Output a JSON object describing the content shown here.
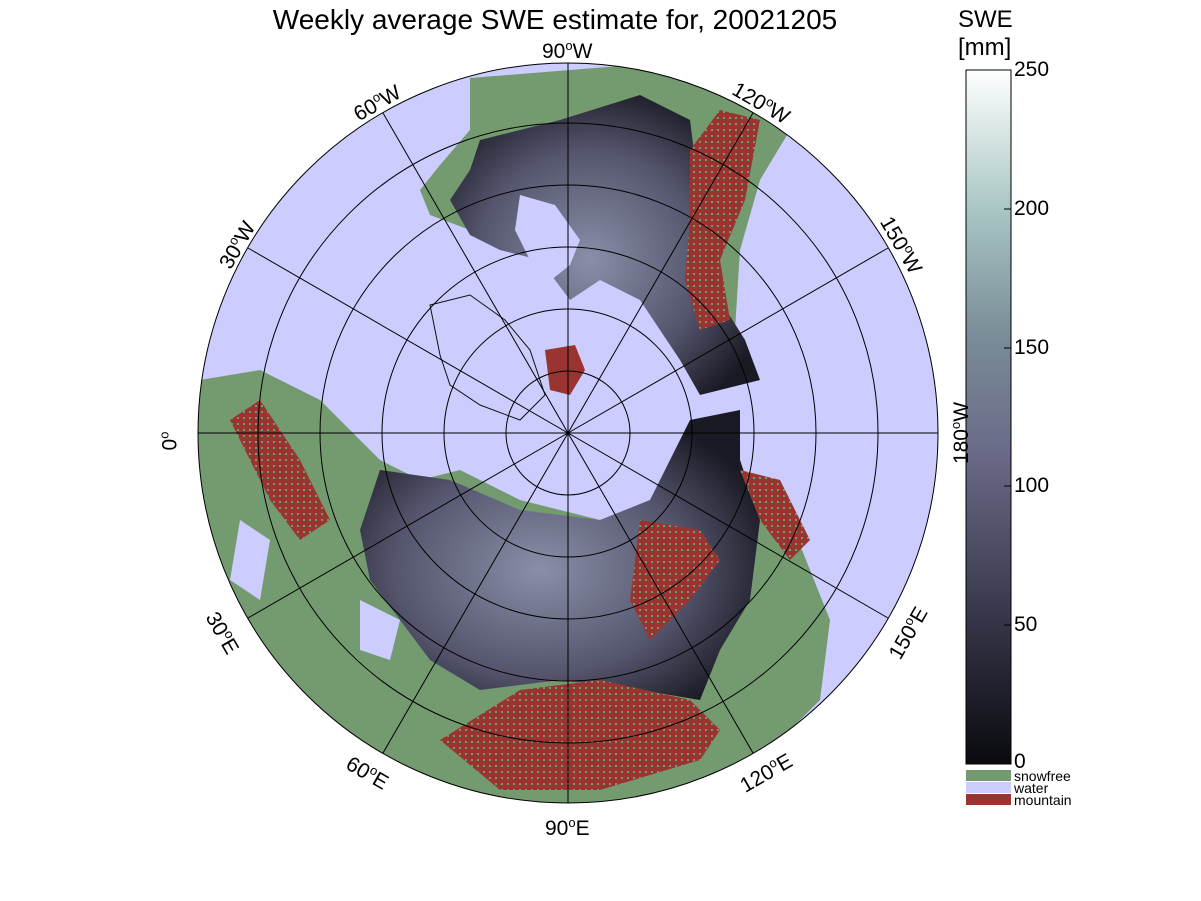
{
  "title": "Weekly average SWE estimate for, 20021205",
  "colorbar": {
    "title_line1": "SWE",
    "title_line2": "[mm]",
    "ticks": [
      "250",
      "200",
      "150",
      "100",
      "50",
      "0"
    ]
  },
  "legend": [
    {
      "label": "snowfree",
      "color": "#749a70"
    },
    {
      "label": "water",
      "color": "#ccccff"
    },
    {
      "label": "mountain",
      "color": "#9a3431"
    }
  ],
  "longitude_labels": [
    {
      "deg": "90",
      "hemi": "W"
    },
    {
      "deg": "120",
      "hemi": "W"
    },
    {
      "deg": "150",
      "hemi": "W"
    },
    {
      "deg": "180",
      "hemi": "W"
    },
    {
      "deg": "150",
      "hemi": "E"
    },
    {
      "deg": "120",
      "hemi": "E"
    },
    {
      "deg": "90",
      "hemi": "E"
    },
    {
      "deg": "60",
      "hemi": "E"
    },
    {
      "deg": "30",
      "hemi": "E"
    },
    {
      "deg": "0",
      "hemi": ""
    },
    {
      "deg": "30",
      "hemi": "W"
    },
    {
      "deg": "60",
      "hemi": "W"
    }
  ],
  "colors": {
    "water": "#ccccff",
    "snowfree": "#749a70",
    "mountain": "#9a3431",
    "snow_low": "#0a0a0f",
    "snow_mid": "#5a5a78",
    "snow_high": "#ffffff"
  }
}
